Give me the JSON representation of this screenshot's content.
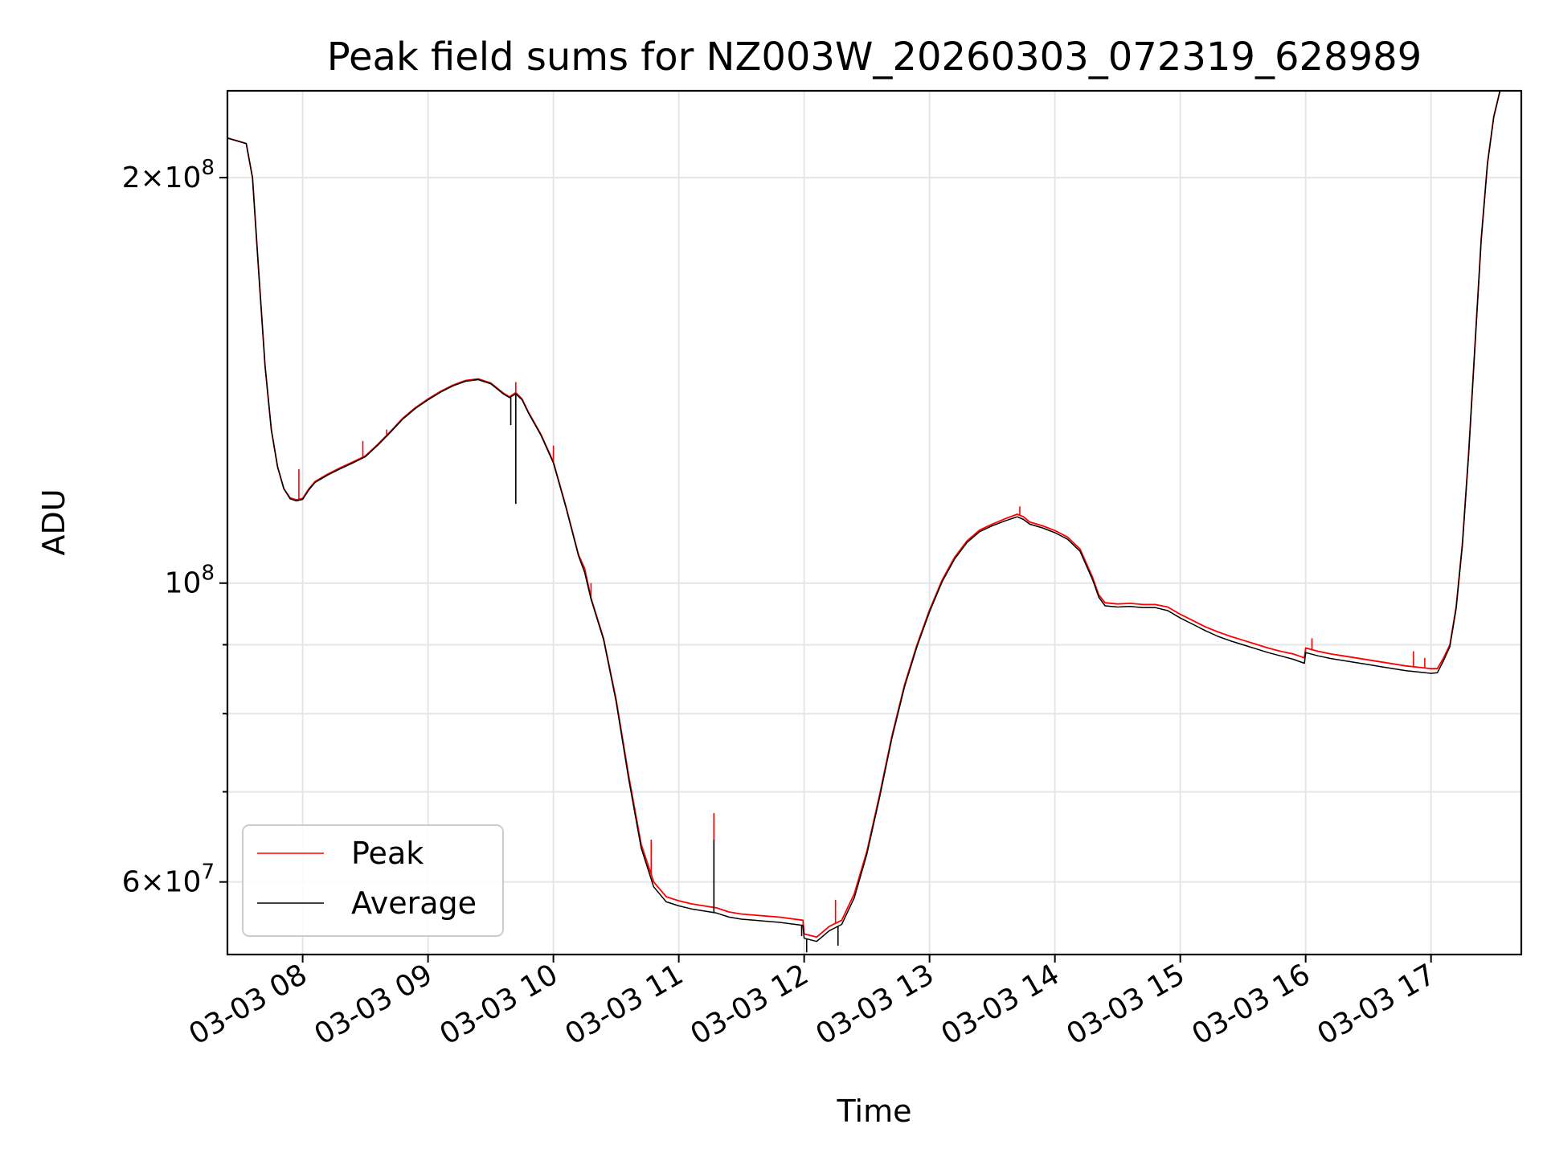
{
  "chart_data": {
    "type": "line",
    "title": "Peak field sums for NZ003W_20260303_072319_628989",
    "xlabel": "Time",
    "ylabel": "ADU",
    "yscale": "log",
    "ylim": [
      53000000,
      232000000
    ],
    "xlim_hours": [
      7.4,
      17.72
    ],
    "grid": true,
    "legend_position": "lower-left",
    "x_ticks": [
      {
        "hour": 8,
        "label": "03-03 08"
      },
      {
        "hour": 9,
        "label": "03-03 09"
      },
      {
        "hour": 10,
        "label": "03-03 10"
      },
      {
        "hour": 11,
        "label": "03-03 11"
      },
      {
        "hour": 12,
        "label": "03-03 12"
      },
      {
        "hour": 13,
        "label": "03-03 13"
      },
      {
        "hour": 14,
        "label": "03-03 14"
      },
      {
        "hour": 15,
        "label": "03-03 15"
      },
      {
        "hour": 16,
        "label": "03-03 16"
      },
      {
        "hour": 17,
        "label": "03-03 17"
      }
    ],
    "y_major_ticks": [
      {
        "value": 60000000,
        "mantissa": "6",
        "exp": "7"
      },
      {
        "value": 100000000,
        "mantissa": "",
        "exp": "8"
      },
      {
        "value": 200000000,
        "mantissa": "2",
        "exp": "8"
      }
    ],
    "y_minor_ticks": [
      70000000,
      80000000,
      90000000
    ],
    "series": [
      {
        "name": "Peak",
        "color": "#ff0000",
        "points": [
          [
            7.4,
            214000000
          ],
          [
            7.55,
            212000000
          ],
          [
            7.6,
            200000000
          ],
          [
            7.65,
            170000000
          ],
          [
            7.7,
            145000000
          ],
          [
            7.75,
            130000000
          ],
          [
            7.8,
            122000000
          ],
          [
            7.85,
            117500000
          ],
          [
            7.9,
            115700000
          ],
          [
            7.95,
            115300000
          ],
          [
            8.0,
            115600000
          ],
          [
            8.05,
            117500000
          ],
          [
            8.1,
            119000000
          ],
          [
            8.2,
            120500000
          ],
          [
            8.3,
            121800000
          ],
          [
            8.4,
            123000000
          ],
          [
            8.5,
            124300000
          ],
          [
            8.6,
            126800000
          ],
          [
            8.7,
            129600000
          ],
          [
            8.8,
            132600000
          ],
          [
            8.9,
            135000000
          ],
          [
            9.0,
            137000000
          ],
          [
            9.1,
            138800000
          ],
          [
            9.2,
            140300000
          ],
          [
            9.3,
            141400000
          ],
          [
            9.4,
            141800000
          ],
          [
            9.5,
            140800000
          ],
          [
            9.6,
            138400000
          ],
          [
            9.65,
            137500000
          ],
          [
            9.7,
            138500000
          ],
          [
            9.75,
            137000000
          ],
          [
            9.8,
            134000000
          ],
          [
            9.9,
            129000000
          ],
          [
            10.0,
            123000000
          ],
          [
            10.1,
            114000000
          ],
          [
            10.2,
            105000000
          ],
          [
            10.25,
            102500000
          ],
          [
            10.3,
            97500000
          ],
          [
            10.4,
            91000000
          ],
          [
            10.5,
            82000000
          ],
          [
            10.6,
            72000000
          ],
          [
            10.7,
            64000000
          ],
          [
            10.8,
            60000000
          ],
          [
            10.9,
            58500000
          ],
          [
            11.0,
            58100000
          ],
          [
            11.1,
            57800000
          ],
          [
            11.2,
            57600000
          ],
          [
            11.3,
            57400000
          ],
          [
            11.4,
            57000000
          ],
          [
            11.5,
            56800000
          ],
          [
            11.6,
            56700000
          ],
          [
            11.7,
            56600000
          ],
          [
            11.8,
            56500000
          ],
          [
            11.99,
            56200000
          ],
          [
            12.0,
            54900000
          ],
          [
            12.1,
            54600000
          ],
          [
            12.2,
            55600000
          ],
          [
            12.3,
            56200000
          ],
          [
            12.4,
            58800000
          ],
          [
            12.5,
            63200000
          ],
          [
            12.6,
            69500000
          ],
          [
            12.7,
            77000000
          ],
          [
            12.8,
            84000000
          ],
          [
            12.9,
            90000000
          ],
          [
            13.0,
            95500000
          ],
          [
            13.1,
            100500000
          ],
          [
            13.2,
            104500000
          ],
          [
            13.3,
            107500000
          ],
          [
            13.4,
            109500000
          ],
          [
            13.5,
            110600000
          ],
          [
            13.6,
            111600000
          ],
          [
            13.7,
            112500000
          ],
          [
            13.75,
            112000000
          ],
          [
            13.8,
            111000000
          ],
          [
            13.9,
            110300000
          ],
          [
            14.0,
            109400000
          ],
          [
            14.1,
            108200000
          ],
          [
            14.2,
            106000000
          ],
          [
            14.3,
            101000000
          ],
          [
            14.35,
            98000000
          ],
          [
            14.4,
            96700000
          ],
          [
            14.5,
            96500000
          ],
          [
            14.6,
            96600000
          ],
          [
            14.7,
            96400000
          ],
          [
            14.8,
            96400000
          ],
          [
            14.9,
            96000000
          ],
          [
            15.0,
            94800000
          ],
          [
            15.1,
            93800000
          ],
          [
            15.2,
            92800000
          ],
          [
            15.3,
            92000000
          ],
          [
            15.4,
            91300000
          ],
          [
            15.5,
            90700000
          ],
          [
            15.6,
            90100000
          ],
          [
            15.7,
            89500000
          ],
          [
            15.8,
            89000000
          ],
          [
            15.9,
            88600000
          ],
          [
            15.99,
            88000000
          ],
          [
            16.0,
            89500000
          ],
          [
            16.1,
            89000000
          ],
          [
            16.2,
            88600000
          ],
          [
            16.3,
            88300000
          ],
          [
            16.4,
            88000000
          ],
          [
            16.5,
            87700000
          ],
          [
            16.6,
            87400000
          ],
          [
            16.7,
            87100000
          ],
          [
            16.8,
            86800000
          ],
          [
            16.9,
            86600000
          ],
          [
            17.0,
            86400000
          ],
          [
            17.05,
            86400000
          ],
          [
            17.1,
            88000000
          ],
          [
            17.15,
            90000000
          ],
          [
            17.2,
            96000000
          ],
          [
            17.25,
            107000000
          ],
          [
            17.3,
            125000000
          ],
          [
            17.35,
            150000000
          ],
          [
            17.4,
            180000000
          ],
          [
            17.45,
            205000000
          ],
          [
            17.5,
            222000000
          ],
          [
            17.55,
            232000000
          ],
          [
            17.72,
            232000000
          ]
        ],
        "spikes": [
          [
            7.97,
            121500000
          ],
          [
            8.48,
            127500000
          ],
          [
            8.67,
            130000000
          ],
          [
            9.7,
            141000000
          ],
          [
            10.0,
            126500000
          ],
          [
            10.3,
            100000000
          ],
          [
            10.78,
            64500000
          ],
          [
            11.28,
            67500000
          ],
          [
            12.25,
            58200000
          ],
          [
            13.72,
            114000000
          ],
          [
            16.05,
            91000000
          ],
          [
            16.86,
            89000000
          ],
          [
            16.95,
            88000000
          ]
        ]
      },
      {
        "name": "Average",
        "color": "#000000",
        "points": [
          [
            7.4,
            214000000
          ],
          [
            7.55,
            212000000
          ],
          [
            7.6,
            200000000
          ],
          [
            7.65,
            170000000
          ],
          [
            7.7,
            145000000
          ],
          [
            7.75,
            130000000
          ],
          [
            7.8,
            122000000
          ],
          [
            7.85,
            117500000
          ],
          [
            7.9,
            115500000
          ],
          [
            7.95,
            115100000
          ],
          [
            8.0,
            115400000
          ],
          [
            8.05,
            117300000
          ],
          [
            8.1,
            118800000
          ],
          [
            8.2,
            120300000
          ],
          [
            8.3,
            121600000
          ],
          [
            8.4,
            122800000
          ],
          [
            8.5,
            124100000
          ],
          [
            8.6,
            126600000
          ],
          [
            8.7,
            129400000
          ],
          [
            8.8,
            132400000
          ],
          [
            8.9,
            134800000
          ],
          [
            9.0,
            136800000
          ],
          [
            9.1,
            138600000
          ],
          [
            9.2,
            140100000
          ],
          [
            9.3,
            141200000
          ],
          [
            9.4,
            141600000
          ],
          [
            9.5,
            140600000
          ],
          [
            9.6,
            138200000
          ],
          [
            9.65,
            137300000
          ],
          [
            9.7,
            138200000
          ],
          [
            9.75,
            136800000
          ],
          [
            9.8,
            133800000
          ],
          [
            9.9,
            128800000
          ],
          [
            10.0,
            122800000
          ],
          [
            10.1,
            113800000
          ],
          [
            10.2,
            104800000
          ],
          [
            10.25,
            101800000
          ],
          [
            10.3,
            97300000
          ],
          [
            10.4,
            90800000
          ],
          [
            10.5,
            81700000
          ],
          [
            10.6,
            71600000
          ],
          [
            10.7,
            63600000
          ],
          [
            10.8,
            59500000
          ],
          [
            10.9,
            58000000
          ],
          [
            11.0,
            57600000
          ],
          [
            11.1,
            57300000
          ],
          [
            11.2,
            57100000
          ],
          [
            11.3,
            56900000
          ],
          [
            11.4,
            56500000
          ],
          [
            11.5,
            56300000
          ],
          [
            11.6,
            56200000
          ],
          [
            11.7,
            56100000
          ],
          [
            11.8,
            56000000
          ],
          [
            11.99,
            55700000
          ],
          [
            12.0,
            54500000
          ],
          [
            12.1,
            54200000
          ],
          [
            12.2,
            55200000
          ],
          [
            12.3,
            55800000
          ],
          [
            12.4,
            58400000
          ],
          [
            12.5,
            62900000
          ],
          [
            12.6,
            69200000
          ],
          [
            12.7,
            76700000
          ],
          [
            12.8,
            83700000
          ],
          [
            12.9,
            89700000
          ],
          [
            13.0,
            95200000
          ],
          [
            13.1,
            100200000
          ],
          [
            13.2,
            104200000
          ],
          [
            13.3,
            107200000
          ],
          [
            13.4,
            109200000
          ],
          [
            13.5,
            110300000
          ],
          [
            13.6,
            111200000
          ],
          [
            13.7,
            112000000
          ],
          [
            13.75,
            111500000
          ],
          [
            13.8,
            110600000
          ],
          [
            13.9,
            109900000
          ],
          [
            14.0,
            109000000
          ],
          [
            14.1,
            107800000
          ],
          [
            14.2,
            105600000
          ],
          [
            14.3,
            100600000
          ],
          [
            14.35,
            97600000
          ],
          [
            14.4,
            96200000
          ],
          [
            14.5,
            96000000
          ],
          [
            14.6,
            96100000
          ],
          [
            14.7,
            95900000
          ],
          [
            14.8,
            95900000
          ],
          [
            14.9,
            95400000
          ],
          [
            15.0,
            94200000
          ],
          [
            15.1,
            93200000
          ],
          [
            15.2,
            92200000
          ],
          [
            15.3,
            91300000
          ],
          [
            15.4,
            90600000
          ],
          [
            15.5,
            90000000
          ],
          [
            15.6,
            89400000
          ],
          [
            15.7,
            88800000
          ],
          [
            15.8,
            88300000
          ],
          [
            15.9,
            87800000
          ],
          [
            15.99,
            87200000
          ],
          [
            16.0,
            88800000
          ],
          [
            16.1,
            88300000
          ],
          [
            16.2,
            87900000
          ],
          [
            16.3,
            87600000
          ],
          [
            16.4,
            87300000
          ],
          [
            16.5,
            87000000
          ],
          [
            16.6,
            86700000
          ],
          [
            16.7,
            86400000
          ],
          [
            16.8,
            86100000
          ],
          [
            16.9,
            85900000
          ],
          [
            17.0,
            85700000
          ],
          [
            17.05,
            85800000
          ],
          [
            17.1,
            87600000
          ],
          [
            17.15,
            89700000
          ],
          [
            17.2,
            95700000
          ],
          [
            17.25,
            106700000
          ],
          [
            17.3,
            124700000
          ],
          [
            17.35,
            149700000
          ],
          [
            17.4,
            179700000
          ],
          [
            17.45,
            204700000
          ],
          [
            17.5,
            221700000
          ],
          [
            17.55,
            232000000
          ],
          [
            17.72,
            232000000
          ]
        ],
        "spikes": [
          [
            9.7,
            114500000
          ],
          [
            9.66,
            131000000
          ],
          [
            11.28,
            64500000
          ],
          [
            11.98,
            54700000
          ],
          [
            12.02,
            53200000
          ],
          [
            12.27,
            53800000
          ]
        ]
      }
    ]
  }
}
